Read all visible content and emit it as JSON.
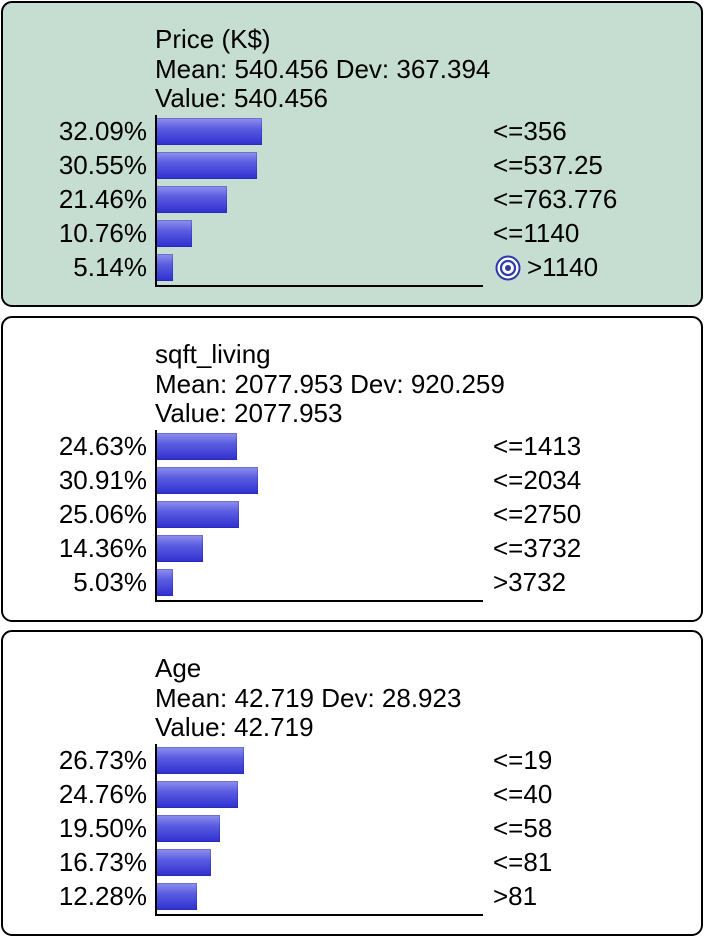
{
  "nodes": [
    {
      "title": "Price (K$)",
      "stats": "Mean: 540.456 Dev: 367.394",
      "value": "Value: 540.456",
      "highlighted": true,
      "rows": [
        {
          "percent": "32.09%",
          "prob": 32.09,
          "state": "<=356"
        },
        {
          "percent": "30.55%",
          "prob": 30.55,
          "state": "<=537.25"
        },
        {
          "percent": "21.46%",
          "prob": 21.46,
          "state": "<=763.776"
        },
        {
          "percent": "10.76%",
          "prob": 10.76,
          "state": "<=1140"
        },
        {
          "percent": "5.14%",
          "prob": 5.14,
          "state": ">1140",
          "icon": "target-icon"
        }
      ]
    },
    {
      "title": "sqft_living",
      "stats": "Mean: 2077.953 Dev: 920.259",
      "value": "Value: 2077.953",
      "highlighted": false,
      "rows": [
        {
          "percent": "24.63%",
          "prob": 24.63,
          "state": "<=1413"
        },
        {
          "percent": "30.91%",
          "prob": 30.91,
          "state": "<=2034"
        },
        {
          "percent": "25.06%",
          "prob": 25.06,
          "state": "<=2750"
        },
        {
          "percent": "14.36%",
          "prob": 14.36,
          "state": "<=3732"
        },
        {
          "percent": "5.03%",
          "prob": 5.03,
          "state": ">3732"
        }
      ]
    },
    {
      "title": "Age",
      "stats": "Mean: 42.719 Dev: 28.923",
      "value": "Value: 42.719",
      "highlighted": false,
      "rows": [
        {
          "percent": "26.73%",
          "prob": 26.73,
          "state": "<=19"
        },
        {
          "percent": "24.76%",
          "prob": 24.76,
          "state": "<=40"
        },
        {
          "percent": "19.50%",
          "prob": 19.5,
          "state": "<=58"
        },
        {
          "percent": "16.73%",
          "prob": 16.73,
          "state": "<=81"
        },
        {
          "percent": "12.28%",
          "prob": 12.28,
          "state": ">81"
        }
      ]
    }
  ],
  "colors": {
    "highlight_bg": "#c6ddd1",
    "bar": "#4a4cd8",
    "icon": "#2e3aa8"
  }
}
